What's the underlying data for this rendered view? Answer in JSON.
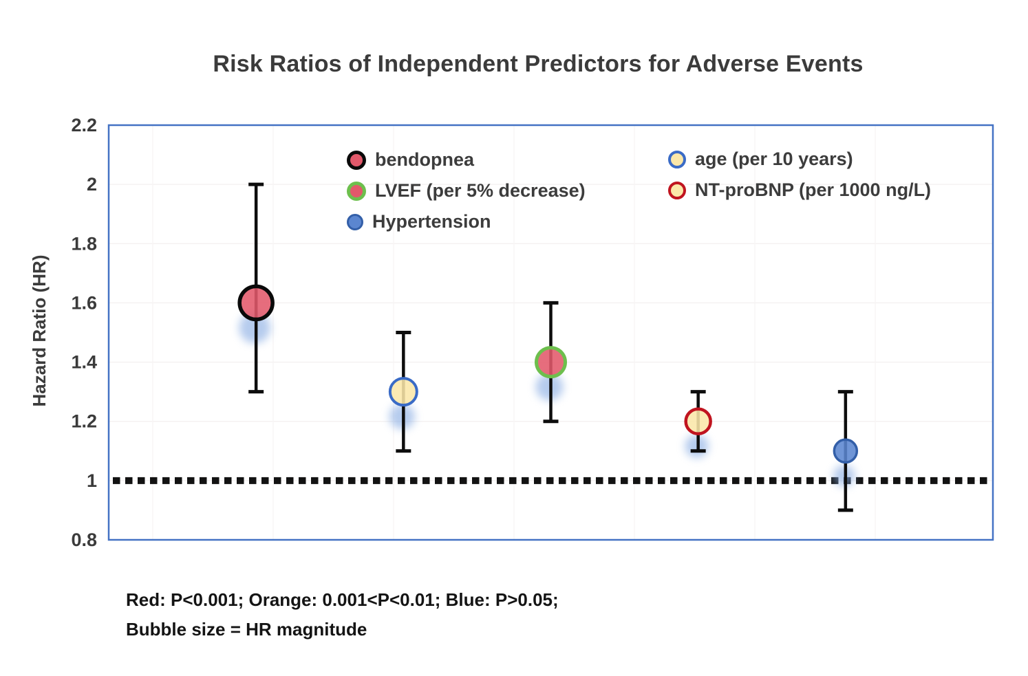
{
  "chart_data": {
    "type": "scatter",
    "subtype": "bubble-with-error-bars",
    "title": "Risk Ratios of Independent Predictors for Adverse Events",
    "ylabel": "Hazard Ratio (HR)",
    "xlabel": "",
    "y_axis": {
      "min": 0.8,
      "max": 2.2,
      "tick_labels": [
        "2.2",
        "2",
        "1.8",
        "1.6",
        "1.4",
        "1.2",
        "1",
        "0.8"
      ]
    },
    "reference_line": {
      "value": 1.0,
      "style": "dotted",
      "color": "#121212"
    },
    "grid": "very-faint",
    "series": [
      {
        "name": "bendopnea",
        "hr": 1.6,
        "ci_low": 1.3,
        "ci_high": 2.0,
        "fill": "#e2596b",
        "ring": "#0a0a0a",
        "ring_width": 5.5
      },
      {
        "name": "age (per 10 years)",
        "hr": 1.3,
        "ci_low": 1.1,
        "ci_high": 1.5,
        "fill": "#fbe7a9",
        "ring": "#3a6bc6",
        "ring_width": 4
      },
      {
        "name": "LVEF (per 5% decrease)",
        "hr": 1.4,
        "ci_low": 1.2,
        "ci_high": 1.6,
        "fill": "#e2596b",
        "ring": "#6dbf4d",
        "ring_width": 5
      },
      {
        "name": "NT-proBNP (per 1000 ng/L)",
        "hr": 1.2,
        "ci_low": 1.1,
        "ci_high": 1.3,
        "fill": "#fbe7a9",
        "ring": "#c0141f",
        "ring_width": 4.5
      },
      {
        "name": "Hypertension",
        "hr": 1.1,
        "ci_low": 0.9,
        "ci_high": 1.3,
        "fill": "#5b86d0",
        "ring": "#335fa8",
        "ring_width": 3.5
      }
    ],
    "legend": {
      "left_column": [
        "bendopnea",
        "LVEF (per 5% decrease)",
        "Hypertension"
      ],
      "right_column": [
        "age (per 10 years)",
        "NT-proBNP (per 1000 ng/L)"
      ]
    },
    "footnotes": [
      "Red: P<0.001; Orange: 0.001<P<0.01; Blue: P>0.05;",
      "Bubble size = HR magnitude"
    ],
    "bubble_size_rule": "Bubble size = HR magnitude"
  },
  "colors": {
    "plot_border": "#4472c4",
    "error_bar": "#0d0d0d",
    "reference_line": "#121212",
    "bubble_shadow": "#84a9e2",
    "tick_label": "#3b3b3b",
    "title_text": "#3b3b3b",
    "footnote_text": "#141414",
    "grid_h": "#f5f2f2",
    "grid_v": "#f8f5f5"
  }
}
